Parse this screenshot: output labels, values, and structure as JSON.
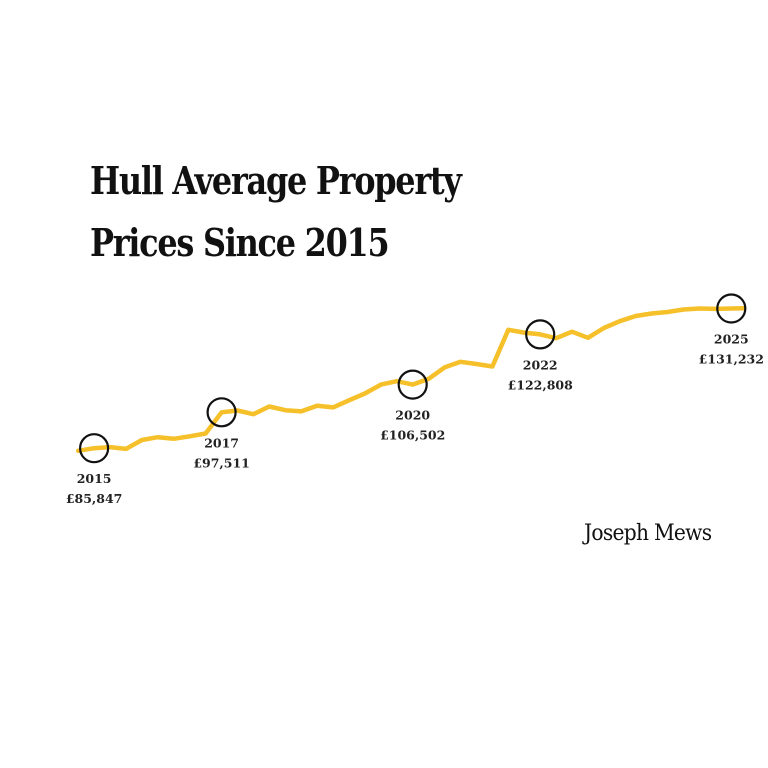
{
  "title_lines": [
    "Hull Average Property",
    "Prices Since 2015"
  ],
  "brand": "Joseph Mews",
  "colors": {
    "line": "#F5C02A",
    "marker": "#111111",
    "text": "#111111"
  },
  "chart_data": {
    "type": "line",
    "title": "Hull Average Property Prices Since 2015",
    "xlim": [
      2014.7,
      2025.45
    ],
    "ylim": [
      82000,
      134000
    ],
    "series": [
      {
        "x": [
          2014.75,
          2015.0,
          2015.25,
          2015.5,
          2015.75,
          2016.0,
          2016.25,
          2016.5,
          2016.75,
          2017.0,
          2017.25,
          2017.5,
          2017.75,
          2018.0,
          2018.25,
          2018.5,
          2018.75,
          2019.0,
          2019.25,
          2019.5,
          2019.75,
          2020.0,
          2020.25,
          2020.5,
          2020.75,
          2021.0,
          2021.25,
          2021.5,
          2021.75,
          2022.0,
          2022.25,
          2022.5,
          2022.75,
          2023.0,
          2023.25,
          2023.5,
          2023.75,
          2024.0,
          2024.25,
          2024.5,
          2024.75,
          2025.0,
          2025.2
        ],
        "y": [
          85000,
          85847,
          86200,
          85600,
          88500,
          89400,
          88900,
          89700,
          90600,
          97511,
          98100,
          96900,
          99400,
          98200,
          97800,
          99600,
          99100,
          101400,
          103600,
          106502,
          107600,
          106502,
          108400,
          112100,
          113900,
          113200,
          112400,
          124300,
          123400,
          122808,
          121600,
          123700,
          121700,
          124900,
          127100,
          128800,
          129600,
          130100,
          130900,
          131232,
          131100,
          131232,
          131300
        ]
      }
    ],
    "markers": [
      {
        "year": "2015",
        "x": 2015.0,
        "y": 85847,
        "value": "£85,847"
      },
      {
        "year": "2017",
        "x": 2017.0,
        "y": 97511,
        "value": "£97,511"
      },
      {
        "year": "2020",
        "x": 2020.0,
        "y": 106502,
        "value": "£106,502"
      },
      {
        "year": "2022",
        "x": 2022.0,
        "y": 122808,
        "value": "£122,808"
      },
      {
        "year": "2025",
        "x": 2025.0,
        "y": 131232,
        "value": "£131,232"
      }
    ]
  }
}
